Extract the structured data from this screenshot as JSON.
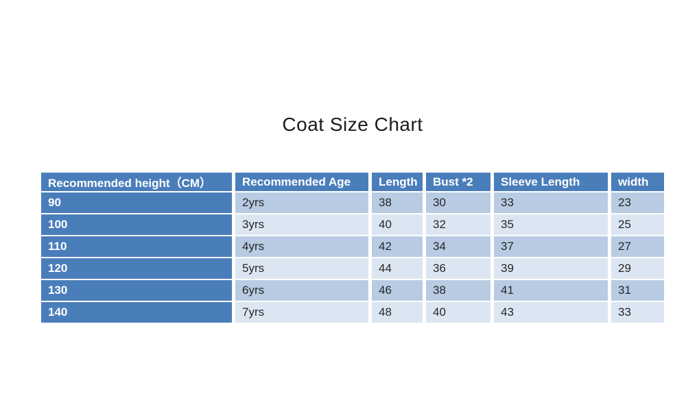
{
  "title": "Coat Size Chart",
  "chart_data": {
    "type": "table",
    "title": "Coat Size Chart",
    "columns": [
      "Recommended height（CM）",
      "Recommended Age",
      "Length",
      "Bust *2",
      "Sleeve Length",
      "width"
    ],
    "rows": [
      [
        "90",
        "2yrs",
        "38",
        "30",
        "33",
        "23"
      ],
      [
        "100",
        "3yrs",
        "40",
        "32",
        "35",
        "25"
      ],
      [
        "110",
        "4yrs",
        "42",
        "34",
        "37",
        "27"
      ],
      [
        "120",
        "5yrs",
        "44",
        "36",
        "39",
        "29"
      ],
      [
        "130",
        "6yrs",
        "46",
        "38",
        "41",
        "31"
      ],
      [
        "140",
        "7yrs",
        "48",
        "40",
        "43",
        "33"
      ]
    ]
  },
  "colors": {
    "header_bg": "#4a7ebb",
    "first_col_bg": "#4a7ebb",
    "band_dark": "#b8cbe3",
    "band_light": "#dce6f2",
    "header_text": "#ffffff",
    "cell_text": "#262626"
  }
}
